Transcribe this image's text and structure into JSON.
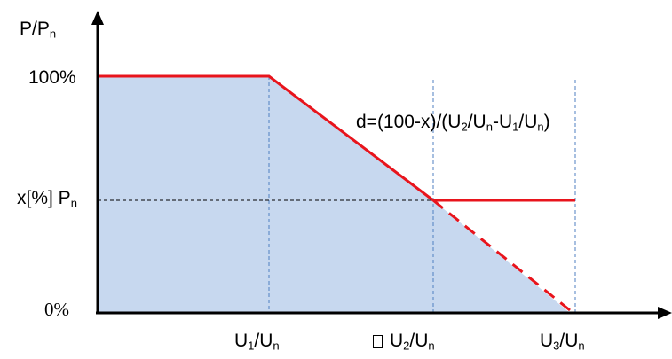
{
  "diagram": {
    "y_axis": {
      "symbol": "P/P",
      "subscript": "n"
    },
    "y_ticks": {
      "top": "100%",
      "mid": {
        "text": "x[%] P",
        "subscript": "n"
      },
      "zero": "0%"
    },
    "x_ticks": [
      {
        "base": "U",
        "sub1": "1",
        "slash": "/U",
        "sub2": "n"
      },
      {
        "base": "U",
        "sub1": "2",
        "slash": "/U",
        "sub2": "n"
      },
      {
        "base": "U",
        "sub1": "3",
        "slash": "/U",
        "sub2": "n"
      }
    ],
    "formula": {
      "prefix": "d=(100-x)/(U",
      "s1": "2",
      "m1": "/U",
      "s2": "n",
      "m2": "-U",
      "s3": "1",
      "m3": "/U",
      "s4": "n",
      "suffix": ")"
    },
    "colors": {
      "curve": "#e8141c",
      "fill": "#c7d8ef",
      "guide_dashed_blue": "#4f7fc0",
      "axis": "#000000"
    }
  }
}
